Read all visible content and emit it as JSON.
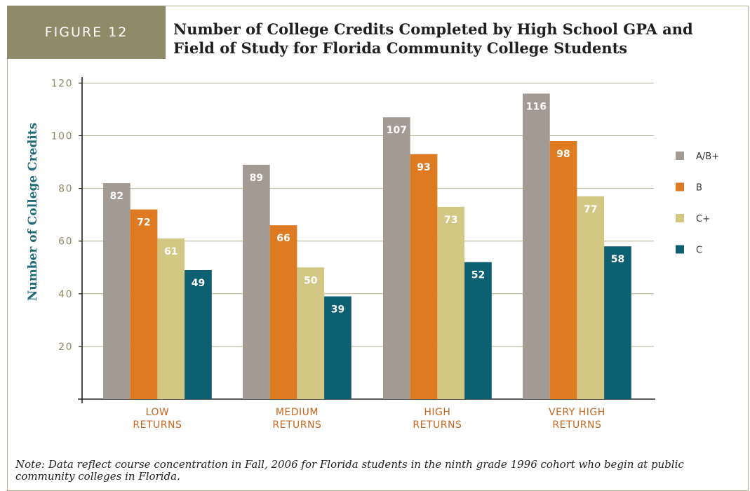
{
  "figure_label": "FIGURE 12",
  "note": "Note: Data reflect course concentration in Fall, 2006 for Florida students in the ninth grade 1996 cohort who begin at public community colleges in Florida.",
  "colors": {
    "A/B+": "#a39a93",
    "B": "#de7a21",
    "C+": "#d3c784",
    "C": "#0d5f72",
    "gridline": "#b3b08c",
    "axis_label": "#1f6b78",
    "category_label": "#c9661e",
    "tick_label": "#8f8b68"
  },
  "chart_data": {
    "type": "bar",
    "title": "Number of College Credits Completed by High School GPA and Field of Study for Florida Community College Students",
    "xlabel": "",
    "ylabel": "Number of College Credits",
    "ylim": [
      0,
      120
    ],
    "yticks": [
      20,
      40,
      60,
      80,
      100,
      120
    ],
    "grid": true,
    "legend_position": "right",
    "categories": [
      [
        "LOW",
        "RETURNS"
      ],
      [
        "MEDIUM",
        "RETURNS"
      ],
      [
        "HIGH",
        "RETURNS"
      ],
      [
        "VERY HIGH",
        "RETURNS"
      ]
    ],
    "series": [
      {
        "name": "A/B+",
        "values": [
          82,
          89,
          107,
          116
        ]
      },
      {
        "name": "B",
        "values": [
          72,
          66,
          93,
          98
        ]
      },
      {
        "name": "C+",
        "values": [
          61,
          50,
          73,
          77
        ]
      },
      {
        "name": "C",
        "values": [
          49,
          39,
          52,
          58
        ]
      }
    ]
  }
}
